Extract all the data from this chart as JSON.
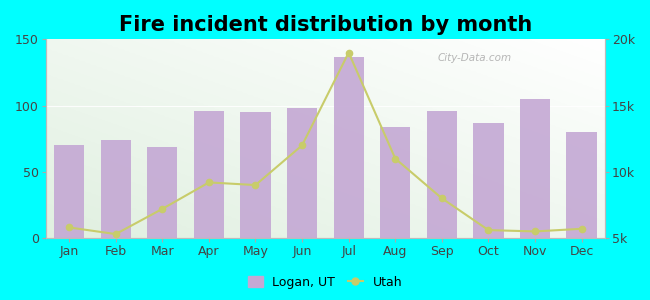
{
  "title": "Fire incident distribution by month",
  "months": [
    "Jan",
    "Feb",
    "Mar",
    "Apr",
    "May",
    "Jun",
    "Jul",
    "Aug",
    "Sep",
    "Oct",
    "Nov",
    "Dec"
  ],
  "logan_values": [
    70,
    74,
    69,
    96,
    95,
    98,
    137,
    84,
    96,
    87,
    105,
    80
  ],
  "utah_values": [
    5800,
    5300,
    7200,
    9200,
    9000,
    12000,
    19000,
    11000,
    8000,
    5600,
    5500,
    5700
  ],
  "bar_color": "#c4a8d4",
  "line_color": "#c8cc6a",
  "marker_color": "#c8cc6a",
  "background_color": "#00ffff",
  "left_ylim": [
    0,
    150
  ],
  "left_yticks": [
    0,
    50,
    100,
    150
  ],
  "right_ylim": [
    5000,
    20000
  ],
  "right_yticks": [
    5000,
    10000,
    15000,
    20000
  ],
  "right_yticklabels": [
    "5k",
    "10k",
    "15k",
    "20k"
  ],
  "title_fontsize": 15,
  "tick_fontsize": 9,
  "legend_labels": [
    "Logan, UT",
    "Utah"
  ],
  "watermark": "City-Data.com"
}
